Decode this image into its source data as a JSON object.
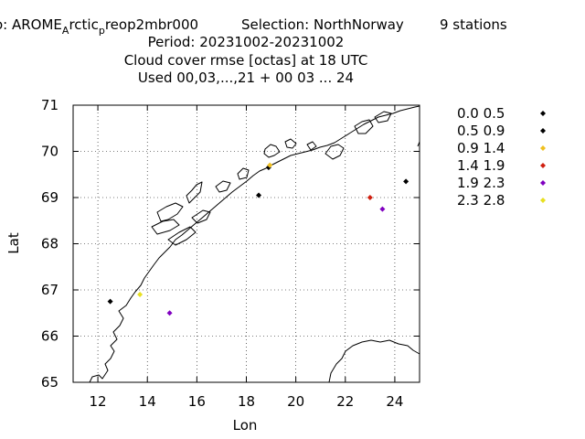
{
  "header": {
    "line1_exp": "o: AROME",
    "line1_sub_a": "A",
    "line1_rctic": "rctic",
    "line1_sub_p": "p",
    "line1_reop": "reop2mbr000",
    "selection": "Selection: NorthNorway",
    "stations": "9 stations",
    "period": "Period: 20231002-20231002",
    "title": "Cloud cover rmse [octas] at  18 UTC",
    "used": "Used  00,03,...,21  + 00 03 ... 24"
  },
  "chart_data": {
    "type": "scatter",
    "xlabel": "Lon",
    "ylabel": "Lat",
    "xlim": [
      11,
      25
    ],
    "ylim": [
      65,
      71
    ],
    "xticks": [
      "12",
      "14",
      "16",
      "18",
      "20",
      "22",
      "24"
    ],
    "yticks": [
      "65",
      "66",
      "67",
      "68",
      "69",
      "70",
      "71"
    ],
    "grid": true,
    "legend_position": "right",
    "legend": [
      {
        "label": "0.0 0.5",
        "color": "#000000"
      },
      {
        "label": "0.5 0.9",
        "color": "#000000"
      },
      {
        "label": "0.9 1.4",
        "color": "#f0c020"
      },
      {
        "label": "1.4 1.9",
        "color": "#d02010"
      },
      {
        "label": "1.9 2.3",
        "color": "#8000c0"
      },
      {
        "label": "2.3 2.8",
        "color": "#e8e020"
      }
    ],
    "points": [
      {
        "lon": 12.5,
        "lat": 66.75,
        "class": 0
      },
      {
        "lon": 13.7,
        "lat": 66.9,
        "class": 5
      },
      {
        "lon": 14.9,
        "lat": 66.5,
        "class": 4
      },
      {
        "lon": 18.5,
        "lat": 69.05,
        "class": 1
      },
      {
        "lon": 18.9,
        "lat": 69.65,
        "class": 0
      },
      {
        "lon": 23.0,
        "lat": 69.0,
        "class": 3
      },
      {
        "lon": 23.5,
        "lat": 68.75,
        "class": 4
      },
      {
        "lon": 24.45,
        "lat": 69.35,
        "class": 1
      },
      {
        "lon": 18.95,
        "lat": 69.7,
        "class": 2
      }
    ]
  }
}
